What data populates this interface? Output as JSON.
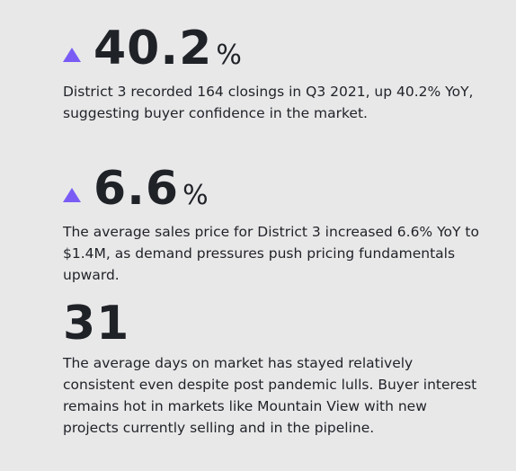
{
  "stats": [
    {
      "value": "40.2",
      "unit": "%",
      "trend_icon": "triangle-up-icon",
      "description": "District 3 recorded 164 closings in Q3 2021, up 40.2% YoY, suggesting buyer confidence in the market."
    },
    {
      "value": "6.6",
      "unit": "%",
      "trend_icon": "triangle-up-icon",
      "description": "The average sales price for District 3 increased 6.6% YoY to $1.4M, as demand pressures push pricing fundamentals upward."
    },
    {
      "value": "31",
      "description": "The average days on market has stayed relatively consistent even despite post pandemic lulls. Buyer interest remains hot in markets like Mountain View with new projects currently selling and in the pipeline."
    }
  ],
  "colors": {
    "background": "#e8e8e9",
    "text": "#1f2227",
    "accent": "#7a5cf5"
  }
}
